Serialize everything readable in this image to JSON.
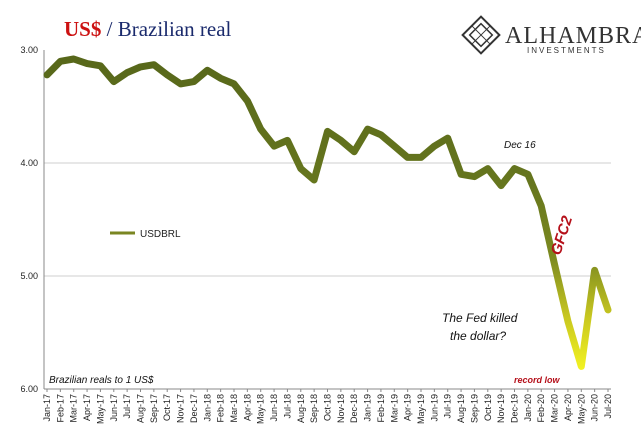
{
  "title": {
    "part1": "US$",
    "sep": " / ",
    "part2": "Brazilian real"
  },
  "logo": {
    "name": "ALHAMBRA",
    "sub": "INVESTMENTS"
  },
  "colors": {
    "title_red": "#cc1111",
    "title_navy": "#1a2a6c",
    "line_dark": "#5f6f1c",
    "line_bright": "#f2f21a",
    "gfc_red": "#b5101a",
    "grid": "#cfcfcf"
  },
  "chart_data": {
    "type": "line",
    "ylabel_note": "Brazilian reals to 1 US$",
    "y_inverted": true,
    "ylim": [
      3.0,
      6.0
    ],
    "yticks": [
      "3.00",
      "4.00",
      "5.00",
      "6.00"
    ],
    "x_tick_labels": [
      "Jan-17",
      "Feb-17",
      "Mar-17",
      "Apr-17",
      "May-17",
      "Jun-17",
      "Jul-17",
      "Aug-17",
      "Sep-17",
      "Oct-17",
      "Nov-17",
      "Dec-17",
      "Jan-18",
      "Feb-18",
      "Mar-18",
      "Apr-18",
      "May-18",
      "Jun-18",
      "Jul-18",
      "Aug-18",
      "Sep-18",
      "Oct-18",
      "Nov-18",
      "Dec-18",
      "Jan-19",
      "Feb-19",
      "Mar-19",
      "Apr-19",
      "May-19",
      "Jun-19",
      "Jul-19",
      "Aug-19",
      "Sep-19",
      "Oct-19",
      "Nov-19",
      "Dec-19",
      "Jan-20",
      "Feb-20",
      "Mar-20",
      "Apr-20",
      "May-20",
      "Jun-20",
      "Jul-20"
    ],
    "series": [
      {
        "name": "USDBRL",
        "x": [
          "Jan-17",
          "Feb-17",
          "Mar-17",
          "Apr-17",
          "May-17",
          "Jun-17",
          "Jul-17",
          "Aug-17",
          "Sep-17",
          "Oct-17",
          "Nov-17",
          "Dec-17",
          "Jan-18",
          "Feb-18",
          "Mar-18",
          "Apr-18",
          "May-18",
          "Jun-18",
          "Jul-18",
          "Aug-18",
          "Sep-18",
          "Oct-18",
          "Nov-18",
          "Dec-18",
          "Jan-19",
          "Feb-19",
          "Mar-19",
          "Apr-19",
          "May-19",
          "Jun-19",
          "Jul-19",
          "Aug-19",
          "Sep-19",
          "Oct-19",
          "Nov-19",
          "Dec-19",
          "Jan-20",
          "Feb-20",
          "Mar-20",
          "Apr-20",
          "May-20",
          "Jun-20",
          "Jul-20"
        ],
        "values": [
          3.22,
          3.1,
          3.08,
          3.12,
          3.14,
          3.28,
          3.2,
          3.15,
          3.13,
          3.22,
          3.3,
          3.28,
          3.18,
          3.25,
          3.3,
          3.45,
          3.7,
          3.85,
          3.8,
          4.05,
          4.15,
          3.72,
          3.8,
          3.9,
          3.7,
          3.75,
          3.85,
          3.95,
          3.95,
          3.85,
          3.78,
          4.1,
          4.12,
          4.05,
          4.2,
          4.05,
          4.1,
          4.38,
          4.9,
          5.4,
          5.8,
          4.95,
          5.3
        ]
      }
    ],
    "annotations": [
      {
        "text": "Dec 16",
        "color": "#111111"
      },
      {
        "text": "GFC2",
        "color": "#b5101a"
      },
      {
        "text": "The Fed killed",
        "color": "#111111"
      },
      {
        "text": "the dollar?",
        "color": "#111111"
      },
      {
        "text": "record low",
        "color": "#b5101a"
      }
    ],
    "grid": true,
    "legend": "left"
  }
}
